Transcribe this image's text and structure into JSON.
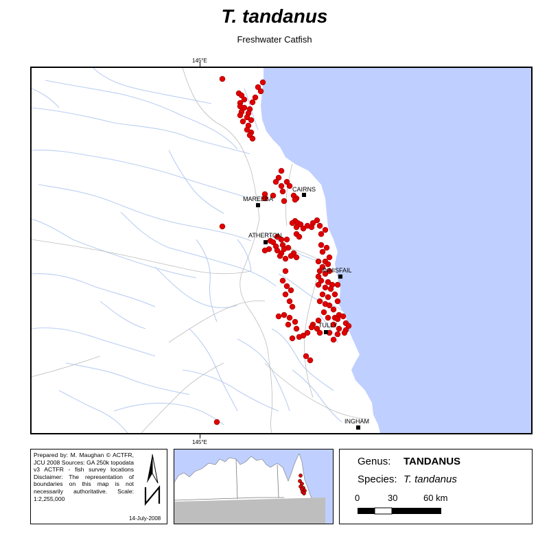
{
  "header": {
    "title": "T. tandanus",
    "subtitle": "Freshwater Catfish"
  },
  "graticule": {
    "top_label": "145°E",
    "bottom_label": "145°E"
  },
  "map": {
    "colors": {
      "sea": "#BFCFFF",
      "land": "#FFFFFF",
      "rivers": "#B9CEF2",
      "boundaries": "#BBBBBB",
      "records": "#E00000",
      "towns": "#000000"
    },
    "towns": [
      {
        "name": "CAIRNS"
      },
      {
        "name": "MAREEBA"
      },
      {
        "name": "ATHERTON"
      },
      {
        "name": "INNISFAIL"
      },
      {
        "name": "TULLY"
      },
      {
        "name": "INGHAM"
      }
    ],
    "record_marker": "red-circle",
    "town_marker": "black-square"
  },
  "credits": {
    "text": "Prepared by: M. Maughan © ACTFR, JCU 2008 Sources: GA 250k topodata v3 ACTFR - fish survey locations Disclaimer: The representation of boundaries on this map is not necessarily authoritative. Scale: 1:2,255,000",
    "date": "14-July-2008",
    "north_arrow_icon": "north-arrow-icon",
    "north_label": "N"
  },
  "inset": {
    "colors": {
      "sea": "#BFCFFF",
      "land": "#FFFFFF",
      "boundary": "#777777",
      "south": "#BEBEBE"
    }
  },
  "legend": {
    "genus_label": "Genus:",
    "genus_value": "TANDANUS",
    "species_label": "Species:",
    "species_value": "T. tandanus",
    "scale_labels": [
      "0",
      "30",
      "60 km"
    ]
  }
}
